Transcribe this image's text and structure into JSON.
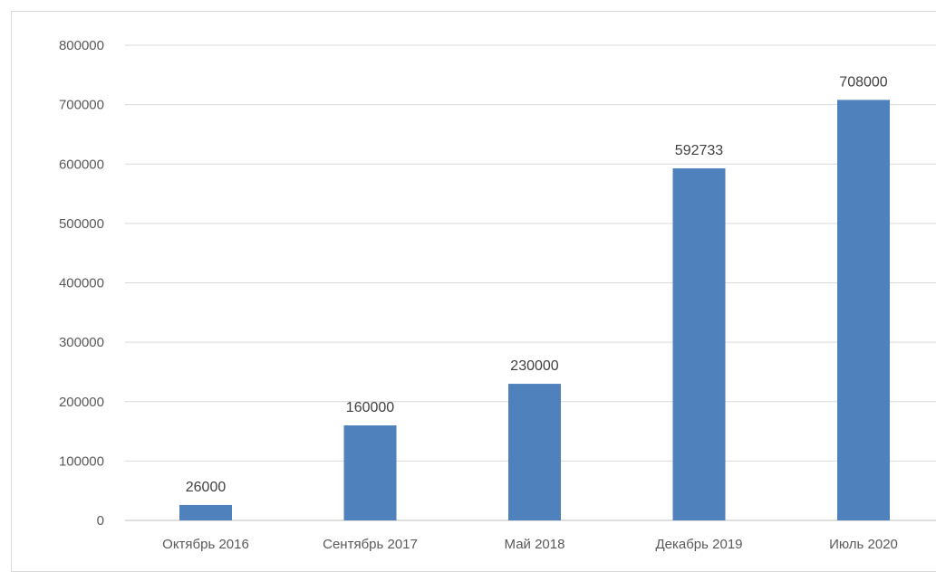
{
  "chart_data": {
    "type": "bar",
    "title": "",
    "xlabel": "",
    "ylabel": "",
    "categories": [
      "Октябрь 2016",
      "Сентябрь 2017",
      "Май 2018",
      "Декабрь 2019",
      "Июль 2020"
    ],
    "values": [
      26000,
      160000,
      230000,
      592733,
      708000
    ],
    "data_labels": [
      "26000",
      "160000",
      "230000",
      "592733",
      "708000"
    ],
    "ylim": [
      0,
      800000
    ],
    "yticks": [
      "0",
      "100000",
      "200000",
      "300000",
      "400000",
      "500000",
      "600000",
      "700000",
      "800000"
    ],
    "grid": true,
    "legend": "none",
    "colors": {
      "bar": "#4f81bd",
      "grid": "#d9d9d9",
      "axis": "#bfbfbf"
    }
  }
}
